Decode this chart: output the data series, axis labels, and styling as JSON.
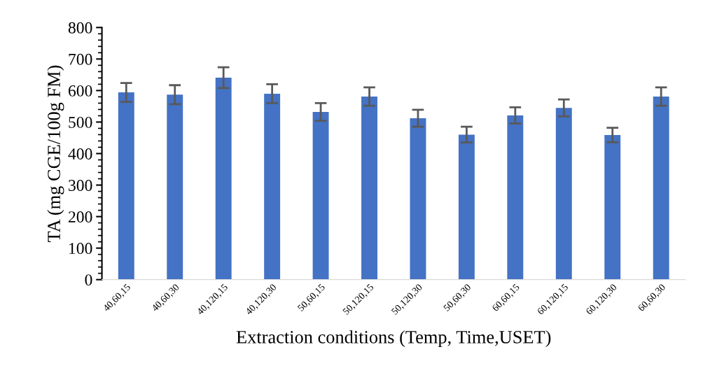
{
  "chart_data": {
    "type": "bar",
    "xlabel": "Extraction conditions (Temp, Time,USET)",
    "ylabel": "TA (mg CGE/100g FM)",
    "categories": [
      "40,60,15",
      "40,60,30",
      "40,120,15",
      "40,120,30",
      "50,60,15",
      "50,120,15",
      "50,120,30",
      "50,60,30",
      "60,60,15",
      "60,120,15",
      "60,120,30",
      "60,60,30"
    ],
    "values": [
      594,
      587,
      641,
      590,
      532,
      581,
      512,
      460,
      521,
      545,
      459,
      581
    ],
    "errors": [
      30,
      30,
      33,
      30,
      28,
      29,
      27,
      25,
      26,
      27,
      23,
      29
    ],
    "color": "#4472c4",
    "ylim": [
      0,
      800
    ],
    "yticks": [
      0,
      100,
      200,
      300,
      400,
      500,
      600,
      700,
      800
    ],
    "grid": false,
    "legend": false
  }
}
